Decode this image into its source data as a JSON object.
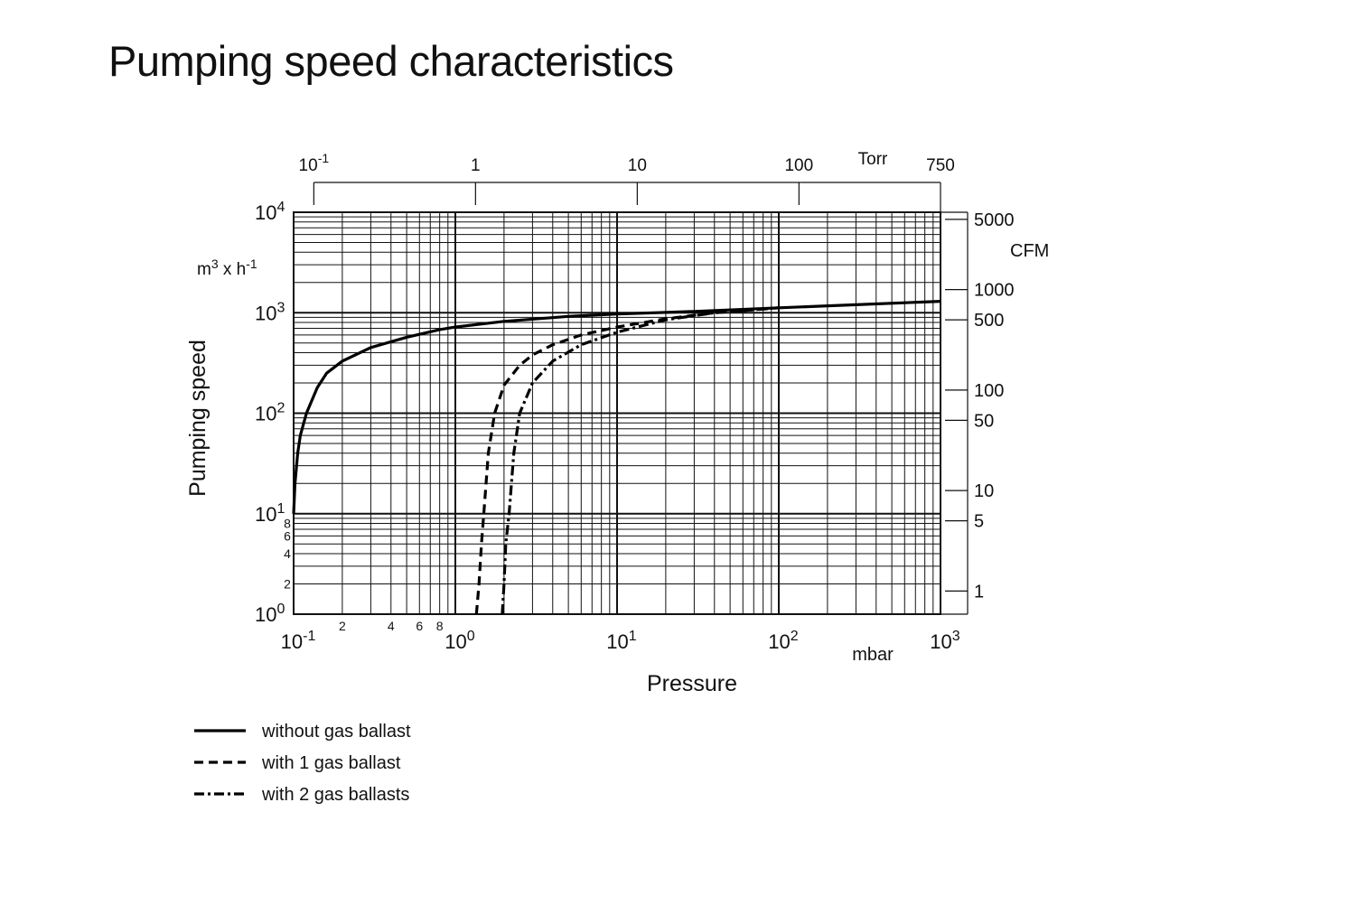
{
  "page": {
    "title": "Pumping speed characteristics"
  },
  "chart_data": {
    "type": "line",
    "x_scale": "log",
    "y_scale": "log",
    "xlim": [
      0.1,
      1000
    ],
    "ylim": [
      1,
      10000
    ],
    "grid": true,
    "xlabel": "Pressure",
    "x_unit": "mbar",
    "ylabel": "Pumping speed",
    "y_unit": {
      "base": "m",
      "sup1": "3",
      "mid": " x h",
      "sup2": "-1"
    },
    "x_ticks": [
      {
        "base": "10",
        "exp": "-1"
      },
      {
        "base": "10",
        "exp": "0"
      },
      {
        "base": "10",
        "exp": "1"
      },
      {
        "base": "10",
        "exp": "2"
      },
      {
        "base": "10",
        "exp": "3"
      }
    ],
    "x_minor_labels": [
      {
        "value": 0.2,
        "label": "2"
      },
      {
        "value": 0.4,
        "label": "4"
      },
      {
        "value": 0.6,
        "label": "6"
      },
      {
        "value": 0.8,
        "label": "8"
      }
    ],
    "y_ticks": [
      {
        "base": "10",
        "exp": "0"
      },
      {
        "base": "10",
        "exp": "1"
      },
      {
        "base": "10",
        "exp": "2"
      },
      {
        "base": "10",
        "exp": "3"
      },
      {
        "base": "10",
        "exp": "4"
      }
    ],
    "y_minor_labels": [
      {
        "value": 2,
        "label": "2"
      },
      {
        "value": 4,
        "label": "4"
      },
      {
        "value": 6,
        "label": "6"
      },
      {
        "value": 8,
        "label": "8"
      }
    ],
    "top_axis": {
      "unit": "Torr",
      "ticks": [
        {
          "label": "10",
          "exp": "-1",
          "mbar": 0.1333
        },
        {
          "label": "1",
          "mbar": 1.333
        },
        {
          "label": "10",
          "mbar": 13.33
        },
        {
          "label": "100",
          "mbar": 133.3
        },
        {
          "label": "750",
          "mbar": 1000
        }
      ]
    },
    "right_axis": {
      "unit": "CFM",
      "ticks": [
        {
          "label": "5000",
          "m3h": 8495
        },
        {
          "label": "1000",
          "m3h": 1699
        },
        {
          "label": "500",
          "m3h": 849.5
        },
        {
          "label": "100",
          "m3h": 169.9
        },
        {
          "label": "50",
          "m3h": 84.95
        },
        {
          "label": "10",
          "m3h": 16.99
        },
        {
          "label": "5",
          "m3h": 8.495
        },
        {
          "label": "1",
          "m3h": 1.699
        }
      ]
    },
    "series": [
      {
        "name": "without gas ballast",
        "style": "solid",
        "points": [
          [
            0.1,
            10
          ],
          [
            0.102,
            20
          ],
          [
            0.106,
            40
          ],
          [
            0.11,
            60
          ],
          [
            0.12,
            100
          ],
          [
            0.14,
            180
          ],
          [
            0.16,
            250
          ],
          [
            0.2,
            330
          ],
          [
            0.3,
            450
          ],
          [
            0.5,
            570
          ],
          [
            0.8,
            680
          ],
          [
            1,
            720
          ],
          [
            2,
            820
          ],
          [
            5,
            920
          ],
          [
            10,
            970
          ],
          [
            30,
            1030
          ],
          [
            100,
            1120
          ],
          [
            300,
            1200
          ],
          [
            1000,
            1300
          ]
        ]
      },
      {
        "name": "with 1 gas ballast",
        "style": "dashed",
        "points": [
          [
            1.35,
            1
          ],
          [
            1.4,
            2
          ],
          [
            1.45,
            5
          ],
          [
            1.5,
            10
          ],
          [
            1.6,
            40
          ],
          [
            1.75,
            100
          ],
          [
            2,
            190
          ],
          [
            2.5,
            300
          ],
          [
            3,
            380
          ],
          [
            4,
            480
          ],
          [
            6,
            600
          ],
          [
            10,
            720
          ],
          [
            20,
            870
          ],
          [
            40,
            1000
          ],
          [
            100,
            1120
          ]
        ]
      },
      {
        "name": "with 2 gas ballasts",
        "style": "dash-dot",
        "points": [
          [
            1.95,
            1
          ],
          [
            2,
            2
          ],
          [
            2.05,
            5
          ],
          [
            2.15,
            10
          ],
          [
            2.3,
            40
          ],
          [
            2.5,
            100
          ],
          [
            3,
            200
          ],
          [
            4,
            330
          ],
          [
            6,
            480
          ],
          [
            10,
            640
          ],
          [
            20,
            850
          ],
          [
            40,
            1000
          ],
          [
            100,
            1120
          ]
        ]
      }
    ]
  }
}
